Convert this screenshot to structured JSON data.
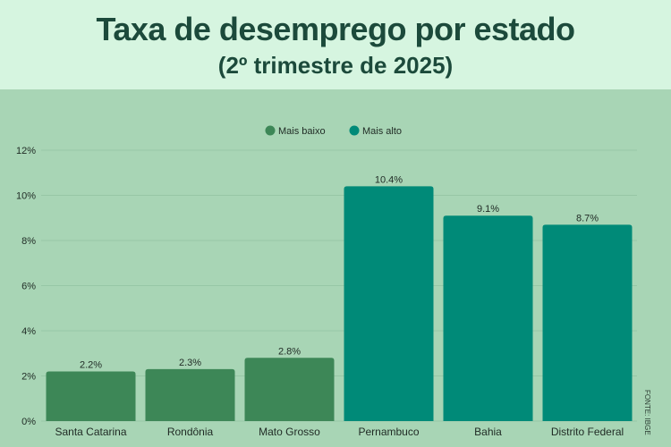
{
  "header": {
    "title": "Taxa de desemprego por estado",
    "subtitle": "(2º trimestre de 2025)"
  },
  "source": "FONTE: IBGE",
  "colors": {
    "low": "#3d8757",
    "high": "#008a78",
    "background": "#a8d5b5",
    "header_bg": "#d6f5e0"
  },
  "chart_data": {
    "type": "bar",
    "title": "Taxa de desemprego por estado",
    "subtitle": "(2º trimestre de 2025)",
    "xlabel": "",
    "ylabel": "",
    "ylim": [
      0,
      12
    ],
    "yticks": [
      0,
      2,
      4,
      6,
      8,
      10,
      12
    ],
    "ytick_labels": [
      "0%",
      "2%",
      "4%",
      "6%",
      "8%",
      "10%",
      "12%"
    ],
    "grid": true,
    "legend_position": "top-center",
    "legend": [
      {
        "name": "Mais baixo",
        "color": "#3d8757"
      },
      {
        "name": "Mais alto",
        "color": "#008a78"
      }
    ],
    "categories": [
      "Santa Catarina",
      "Rondônia",
      "Mato Grosso",
      "Pernambuco",
      "Bahia",
      "Distrito Federal"
    ],
    "values": [
      2.2,
      2.3,
      2.8,
      10.4,
      9.1,
      8.7
    ],
    "value_labels": [
      "2.2%",
      "2.3%",
      "2.8%",
      "10.4%",
      "9.1%",
      "8.7%"
    ],
    "groups": [
      "Mais baixo",
      "Mais baixo",
      "Mais baixo",
      "Mais alto",
      "Mais alto",
      "Mais alto"
    ]
  }
}
